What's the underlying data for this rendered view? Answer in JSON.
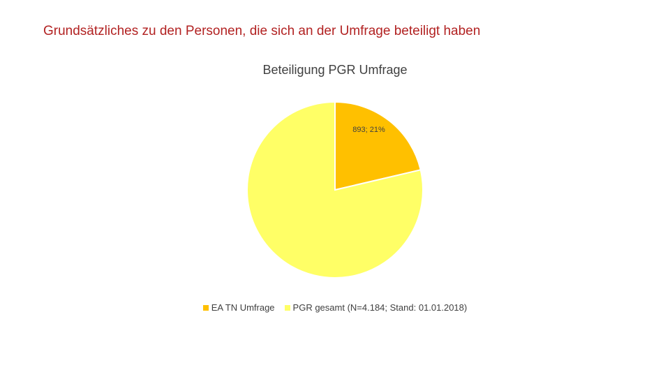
{
  "slide": {
    "title": "Grundsätzliches zu den Personen, die sich an der Umfrage beteiligt haben"
  },
  "chart_data": {
    "type": "pie",
    "title": "Beteiligung PGR Umfrage",
    "categories": [
      "EA TN Umfrage",
      "PGR gesamt (N=4.184; Stand: 01.01.2018)"
    ],
    "values": [
      893,
      3291
    ],
    "colors": [
      "#ffc000",
      "#ffff66"
    ],
    "data_labels": [
      "893; 21%",
      ""
    ],
    "legend_position": "bottom"
  }
}
